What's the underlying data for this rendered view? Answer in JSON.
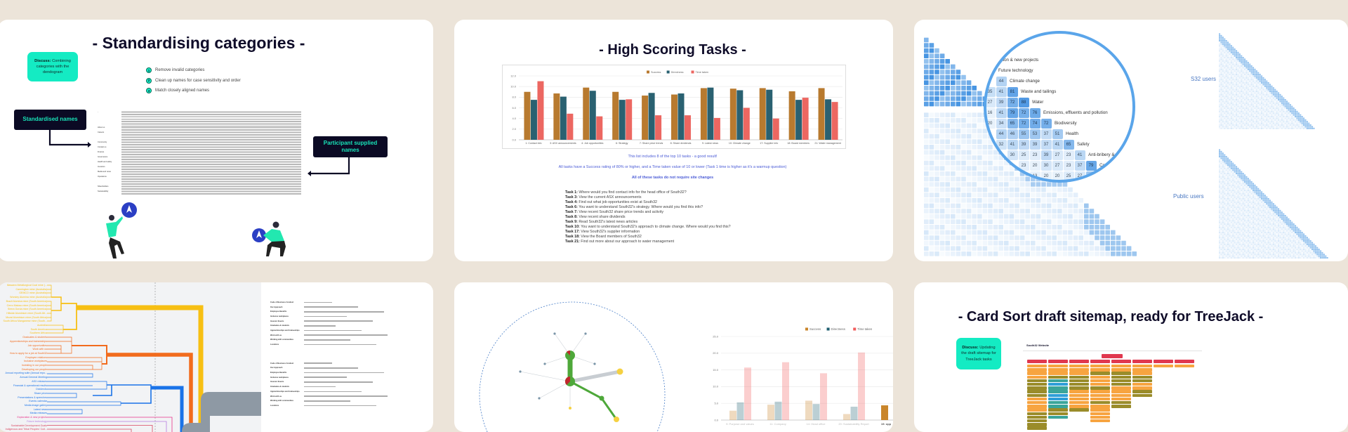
{
  "slides": {
    "standardising": {
      "title": "- Standardising categories -",
      "discuss_label": "Discuss:",
      "discuss_text": "Combining categories with the dendogram",
      "steps": [
        {
          "num": "1",
          "text": "Remove invalid categories"
        },
        {
          "num": "2",
          "text": "Clean up names for case sensitivity and order"
        },
        {
          "num": "3",
          "text": "Match closely aligned names"
        }
      ],
      "standardised_label": "Standardised names",
      "participant_label": "Participant supplied names",
      "table_rows": [
        "-",
        "About us",
        "Careers",
        "",
        "Community",
        "Contact us",
        "Finance",
        "Governance",
        "Health and safety",
        "Investors",
        "Media and news",
        "Operations",
        "",
        "Shareholders",
        "Sustainability"
      ]
    },
    "high_scoring": {
      "title": "- High Scoring Tasks -",
      "note1": "This list includes 8 of the top 10 tasks - a good result!",
      "note2": "All tasks have a Success rating of 80% or higher, and a Time taken value of 10 or lower (Task 1 time is higher as it's a warmup question)",
      "note3": "All of these tasks do not require site changes",
      "tasks": [
        {
          "id": "Task 1:",
          "text": "Where would you find contact info for the head office of South32?"
        },
        {
          "id": "Task 3:",
          "text": "View the current ASX announcements"
        },
        {
          "id": "Task 4:",
          "text": "Find out what job opportunities exist at South32"
        },
        {
          "id": "Task 6:",
          "text": "You want to understand South32's strategy. Where would you find this info?"
        },
        {
          "id": "Task 7:",
          "text": "View recent South32 share price trends and activity"
        },
        {
          "id": "Task 8:",
          "text": "View recent share dividends"
        },
        {
          "id": "Task 9:",
          "text": "Read South32's latest news articles"
        },
        {
          "id": "Task 10:",
          "text": "You want to understand South32's approach to climate change. Where would you find this?"
        },
        {
          "id": "Task 17:",
          "text": "View South32's supplier information"
        },
        {
          "id": "Task 18:",
          "text": "View the Board members of South32"
        },
        {
          "id": "Task 21:",
          "text": "Find out more about our approach to water management"
        }
      ]
    },
    "similarity": {
      "s32_label": "S32 users",
      "public_label": "Public users",
      "rows": [
        {
          "label": "Exploration & new projects",
          "cells": []
        },
        {
          "label": "Future technology",
          "cells": [
            null
          ]
        },
        {
          "label": "Climate change",
          "cells": [
            null,
            44
          ]
        },
        {
          "label": "Waste and tailings",
          "cells": [
            35,
            41,
            81
          ]
        },
        {
          "label": "Water",
          "cells": [
            27,
            39,
            72,
            88
          ]
        },
        {
          "label": "Emissions, effluents and pollution",
          "cells": [
            16,
            41,
            79,
            72,
            76
          ]
        },
        {
          "label": "Biodiversity",
          "cells": [
            20,
            34,
            65,
            72,
            74,
            72
          ]
        },
        {
          "label": "Health",
          "cells": [
            null,
            44,
            46,
            55,
            53,
            37,
            51
          ]
        },
        {
          "label": "Safety",
          "cells": [
            null,
            32,
            41,
            39,
            39,
            37,
            41,
            65
          ]
        },
        {
          "label": "Anti-bribery & corruption",
          "cells": [
            null,
            null,
            30,
            25,
            23,
            39,
            27,
            23,
            41
          ]
        },
        {
          "label": "Community",
          "cells": [
            null,
            null,
            null,
            23,
            20,
            30,
            27,
            23,
            37,
            79
          ]
        },
        {
          "label": "",
          "cells": [
            null,
            null,
            null,
            null,
            13,
            20,
            20,
            25,
            27,
            55
          ]
        }
      ]
    },
    "dendrogram": {
      "groups": [
        {
          "color": "#f7bf13",
          "labels": [
            "Illawarra Metallurgical Coal mine (...",
            "Cannington mine (Australia)",
            "GEMCO mine (Australia)",
            "Worsley Alumina mine (Australia)",
            "Brazil Alumina mine (South America)",
            "Cerro Matoso mine (South America)",
            "Sierra Gorda mine (South America)",
            "Hillside Aluminium mine (South Afr...",
            "Mozal Aluminium mine (South Africa)",
            "South Africa Manganese mine (South...",
            "Australia",
            "South America",
            "Southern Africa"
          ]
        },
        {
          "color": "#f26b1d",
          "labels": [
            "Graduates & students",
            "Apprenticeships and traineeships",
            "Job opportunities",
            "Work with us",
            "How to apply for a job at South32",
            "Employee relations",
            "Inclusive workplaces",
            "Investing in our people",
            "Developing our people"
          ]
        },
        {
          "color": "#1a73e8",
          "labels": [
            "Annual reporting suite (Annual repo...",
            "Annual General Meeting",
            "ASX releases",
            "Financial & operational results",
            "Dividends",
            "Share price",
            "Presentations & speeches",
            "Events calendar",
            "Media image gallery",
            "Latest news",
            "Media releases"
          ]
        },
        {
          "color": "#e8338a",
          "labels": [
            "Exploration & new projects"
          ]
        },
        {
          "color": "#b57be0",
          "labels": [
            "Future technology"
          ]
        },
        {
          "color": "#d9455f",
          "labels": [
            "Sustainable Development Goals",
            "Indigenous and Tribal Peoples' Cult..."
          ]
        }
      ],
      "table_labels": [
        "Code of Business Conduct",
        "Our Approach",
        "Employee Benefits",
        "Inclusive workplaces",
        "Investor Events",
        "Graduates & students",
        "Apprenticeships and traineeships",
        "Work with us",
        "Working with communities",
        "Locations"
      ]
    },
    "card_sort": {
      "title": "- Card Sort draft sitemap, ready for TreeJack -",
      "discuss_label": "Discuss:",
      "discuss_text": "Updating the draft sitemap for TreeJack tasks",
      "sitemap_title": "South32 Website",
      "columns": [
        "oooogggggooooggggg",
        "ooogtbttbbttggt",
        "oooggggooooog",
        "oogooogooogooooo",
        "ooggggoooogg",
        "oooggoogg",
        "o",
        "o"
      ]
    }
  },
  "chart_data": [
    {
      "type": "bar",
      "title": "",
      "categories": [
        "1: Contact info",
        "3: ASX announcements",
        "4: Job opportunities",
        "6: Strategy",
        "7: Share price trends",
        "8: Share dividends",
        "9: Latest news",
        "10: Climate change",
        "17: Supplier info",
        "18: Board members",
        "21: Water management"
      ],
      "series": [
        {
          "name": "Success",
          "color": "#b87a2f",
          "values": [
            9.0,
            8.7,
            9.8,
            9.0,
            8.3,
            8.5,
            9.7,
            9.6,
            9.7,
            9.1,
            9.7
          ]
        },
        {
          "name": "Directness",
          "color": "#2a6171",
          "values": [
            7.5,
            8.1,
            9.2,
            7.5,
            8.8,
            8.7,
            9.8,
            9.3,
            9.4,
            7.5,
            7.6
          ]
        },
        {
          "name": "Time taken",
          "color": "#ec6761",
          "values": [
            11.0,
            4.9,
            4.4,
            7.6,
            4.6,
            4.6,
            4.1,
            6.0,
            4.0,
            7.9,
            7.1
          ]
        }
      ],
      "yticks": [
        "0.0",
        "2.0",
        "4.0",
        "6.0",
        "8.0",
        "10.0",
        "12.0"
      ],
      "ylim": [
        0,
        12
      ],
      "grid": true,
      "legend": "top"
    },
    {
      "type": "bar",
      "title": "",
      "categories": [
        "9: Purpose and values",
        "11: Company",
        "14: Head office",
        "20: Sustainability Report",
        "19: opp"
      ],
      "series": [
        {
          "name": "Success",
          "color": "#c9852a",
          "values": [
            2.8,
            4.6,
            5.8,
            1.8,
            4.4
          ]
        },
        {
          "name": "Directness",
          "color": "#1f5f70",
          "values": [
            5.3,
            5.5,
            4.8,
            4.0,
            null
          ]
        },
        {
          "name": "Time taken",
          "color": "#f25c5c",
          "values": [
            15.7,
            17.3,
            14.0,
            20.2,
            null
          ]
        }
      ],
      "yticks": [
        "0.0",
        "5.0",
        "10.0",
        "15.0",
        "20.0",
        "25.0"
      ],
      "ylim": [
        0,
        25
      ],
      "grid": true,
      "legend": "top-right"
    }
  ]
}
